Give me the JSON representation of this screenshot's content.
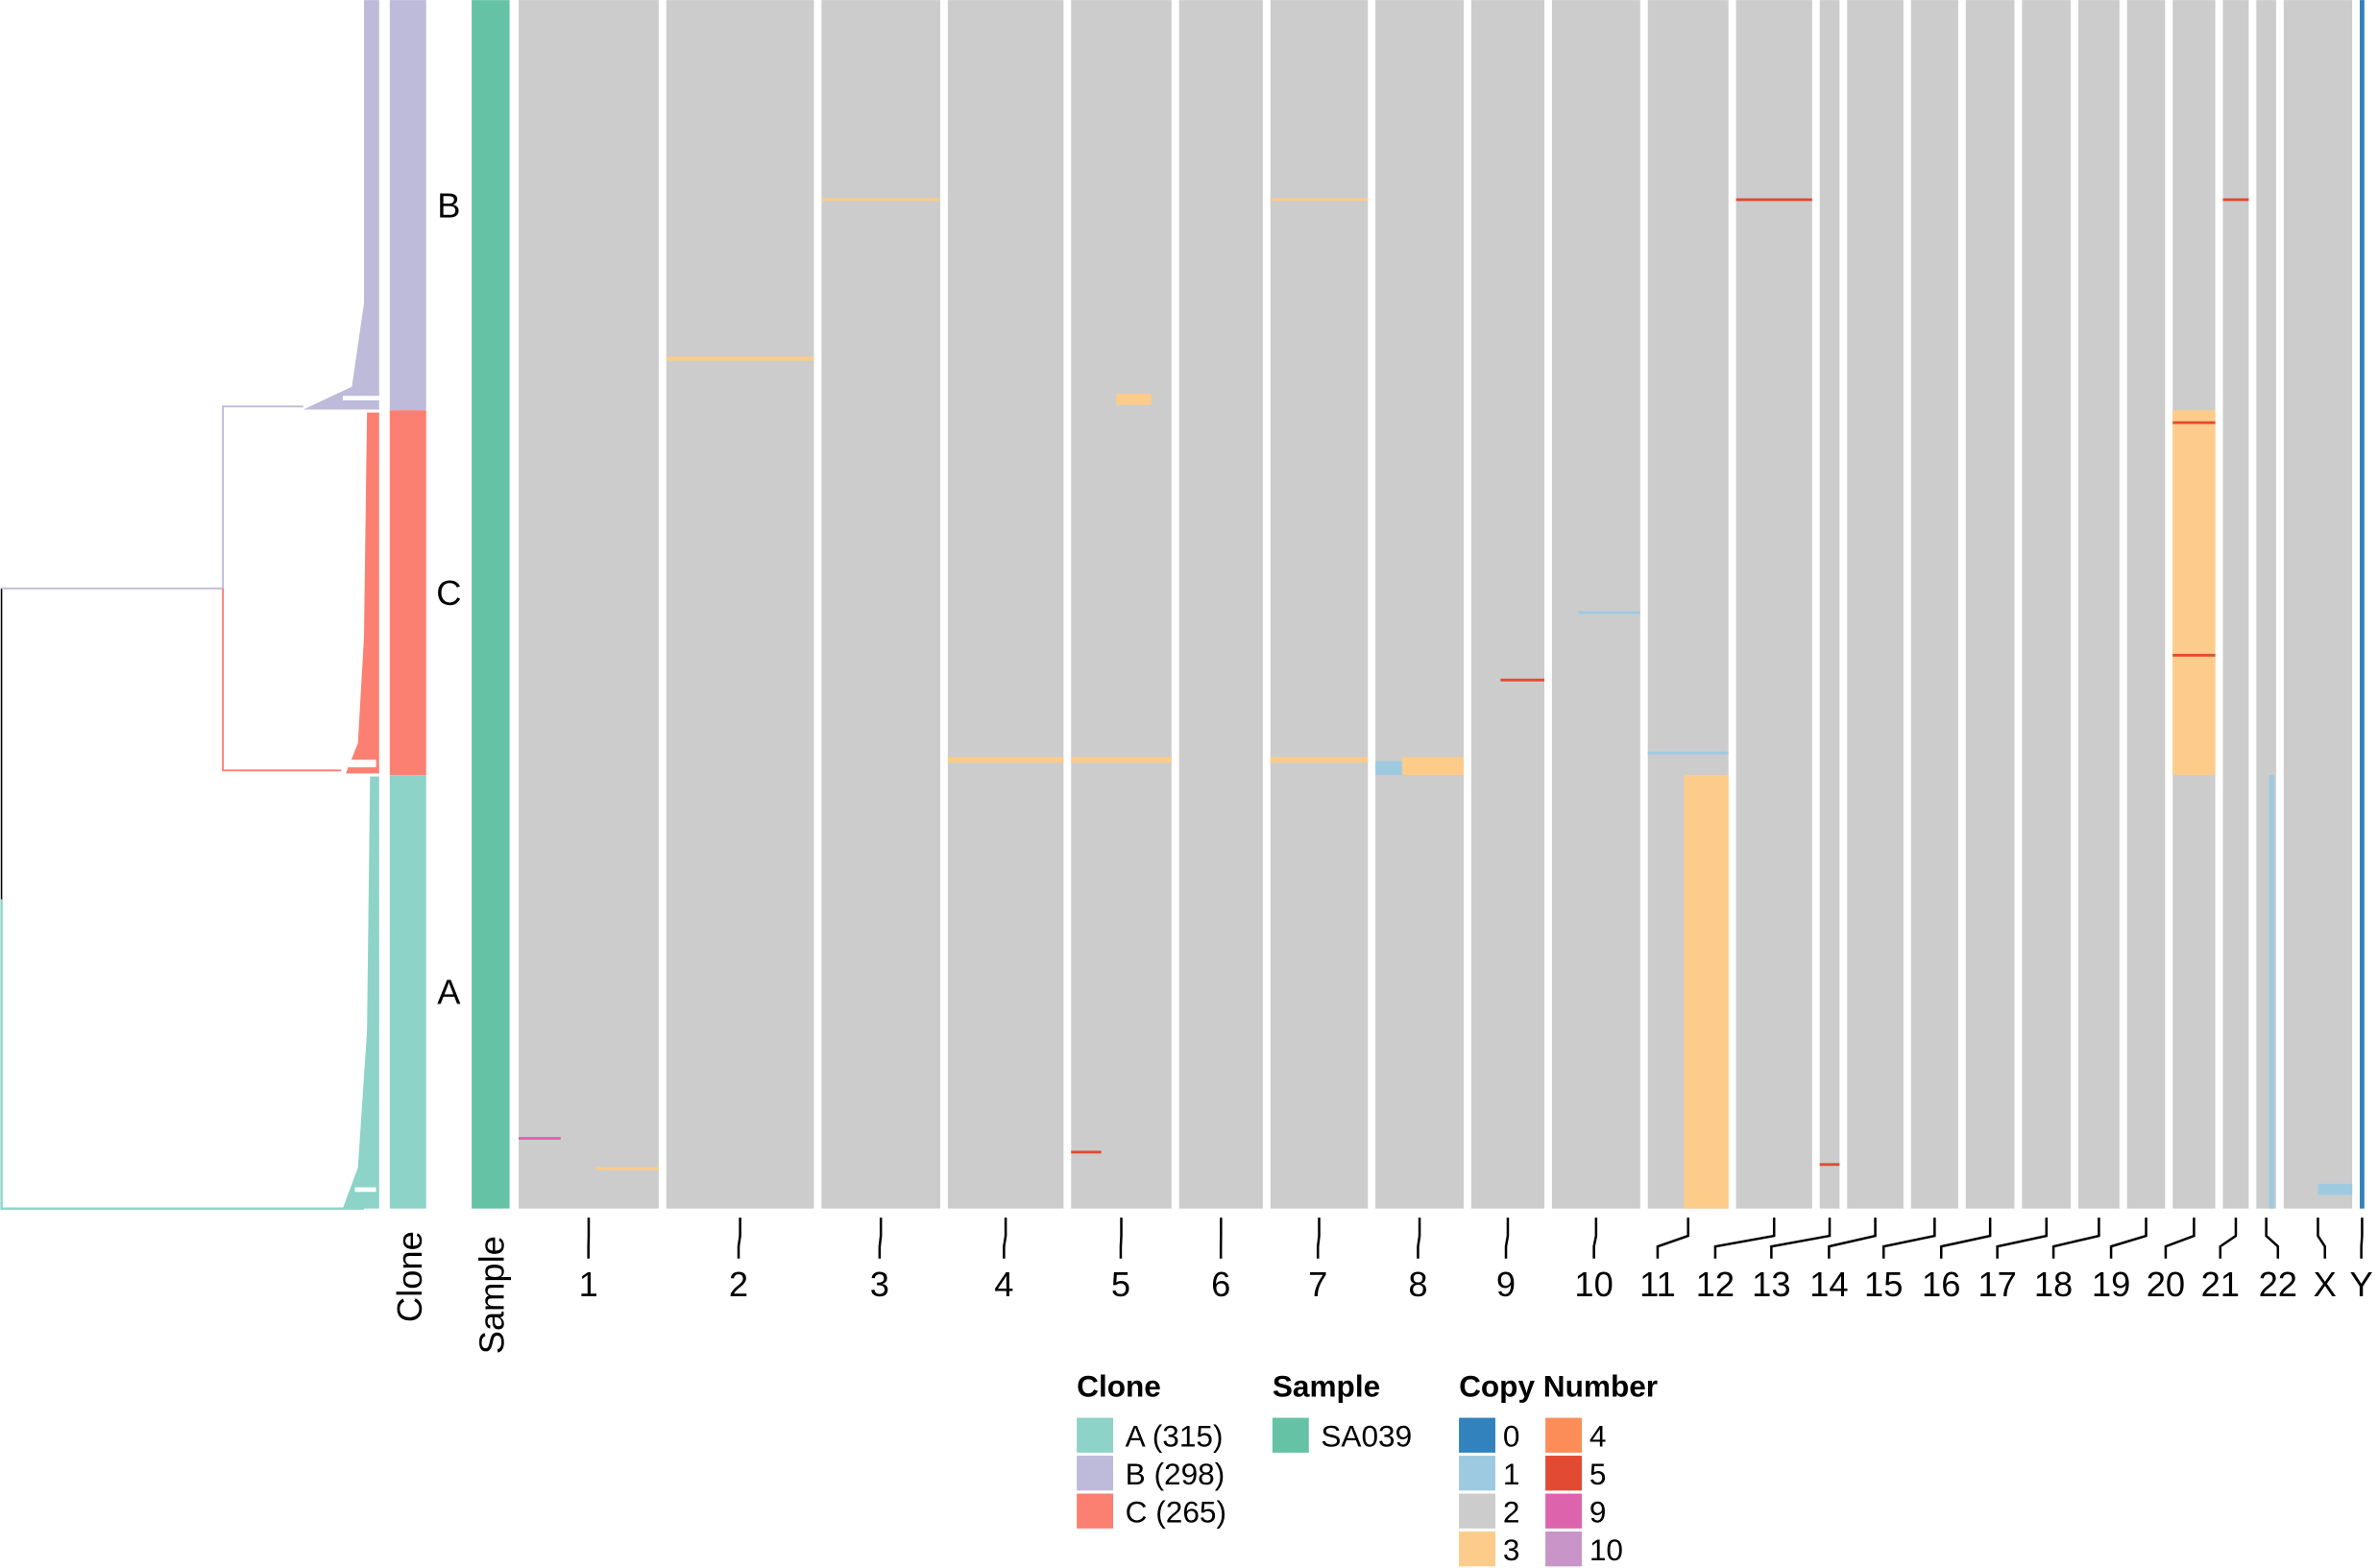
{
  "chart_data": {
    "type": "heatmap",
    "title": "",
    "row_order": [
      "B",
      "C",
      "A"
    ],
    "clones": [
      {
        "id": "A",
        "label": "A (315)",
        "cells": 315,
        "color": "#8DD3C7"
      },
      {
        "id": "B",
        "label": "B (298)",
        "cells": 298,
        "color": "#BEBADA"
      },
      {
        "id": "C",
        "label": "C (265)",
        "cells": 265,
        "color": "#FB8072"
      }
    ],
    "samples": [
      {
        "id": "SA039",
        "label": "SA039",
        "color": "#66C2A5"
      }
    ],
    "column_labels": {
      "clone": "Clone",
      "sample": "Sample"
    },
    "chromosomes": [
      {
        "name": "1",
        "size": 92
      },
      {
        "name": "2",
        "size": 97
      },
      {
        "name": "3",
        "size": 78
      },
      {
        "name": "4",
        "size": 76
      },
      {
        "name": "5",
        "size": 66
      },
      {
        "name": "6",
        "size": 55
      },
      {
        "name": "7",
        "size": 64
      },
      {
        "name": "8",
        "size": 58
      },
      {
        "name": "9",
        "size": 48
      },
      {
        "name": "10",
        "size": 58
      },
      {
        "name": "11",
        "size": 53
      },
      {
        "name": "12",
        "size": 50
      },
      {
        "name": "13",
        "size": 13
      },
      {
        "name": "14",
        "size": 37
      },
      {
        "name": "15",
        "size": 31
      },
      {
        "name": "16",
        "size": 32
      },
      {
        "name": "17",
        "size": 32
      },
      {
        "name": "18",
        "size": 27
      },
      {
        "name": "19",
        "size": 25
      },
      {
        "name": "20",
        "size": 28
      },
      {
        "name": "21",
        "size": 17
      },
      {
        "name": "22",
        "size": 13
      },
      {
        "name": "X",
        "size": 45
      },
      {
        "name": "Y",
        "size": 3
      }
    ],
    "baseline_copy_number": 2,
    "segments": [
      {
        "chr": "11",
        "from": 0.45,
        "to": 1.0,
        "cell_from": 563,
        "cell_to": 878,
        "cn": 3
      },
      {
        "chr": "20",
        "from": 0.0,
        "to": 1.0,
        "cell_from": 298,
        "cell_to": 563,
        "cn": 3
      },
      {
        "chr": "22",
        "from": 0.65,
        "to": 0.9,
        "cell_from": 563,
        "cell_to": 878,
        "cn": 1
      },
      {
        "chr": "Y",
        "from": 0.0,
        "to": 1.0,
        "cell_from": 0,
        "cell_to": 878,
        "cn": 0
      },
      {
        "chr": "8",
        "from": 0.3,
        "to": 1.0,
        "cell_from": 550,
        "cell_to": 563,
        "cn": 3
      },
      {
        "chr": "8",
        "from": 0.0,
        "to": 0.3,
        "cell_from": 553,
        "cell_to": 563,
        "cn": 1
      },
      {
        "chr": "5",
        "from": 0.45,
        "to": 0.8,
        "cell_from": 286,
        "cell_to": 294,
        "cn": 3
      },
      {
        "chr": "4",
        "from": 0.0,
        "to": 1.0,
        "cell_from": 550,
        "cell_to": 554,
        "cn": 3
      },
      {
        "chr": "5",
        "from": 0.0,
        "to": 1.0,
        "cell_from": 550,
        "cell_to": 554,
        "cn": 3
      },
      {
        "chr": "7",
        "from": 0.0,
        "to": 1.0,
        "cell_from": 550,
        "cell_to": 554,
        "cn": 3
      },
      {
        "chr": "3",
        "from": 0.0,
        "to": 1.0,
        "cell_from": 144,
        "cell_to": 146,
        "cn": 3
      },
      {
        "chr": "7",
        "from": 0.0,
        "to": 1.0,
        "cell_from": 144,
        "cell_to": 146,
        "cn": 3
      },
      {
        "chr": "12",
        "from": 0.0,
        "to": 1.0,
        "cell_from": 144,
        "cell_to": 146,
        "cn": 5
      },
      {
        "chr": "20",
        "from": 0.0,
        "to": 1.0,
        "cell_from": 306,
        "cell_to": 308,
        "cn": 5
      },
      {
        "chr": "20",
        "from": 0.0,
        "to": 1.0,
        "cell_from": 475,
        "cell_to": 477,
        "cn": 5
      },
      {
        "chr": "9",
        "from": 0.4,
        "to": 1.0,
        "cell_from": 493,
        "cell_to": 495,
        "cn": 5
      },
      {
        "chr": "2",
        "from": 0.0,
        "to": 1.0,
        "cell_from": 259,
        "cell_to": 262,
        "cn": 3
      },
      {
        "chr": "X",
        "from": 0.5,
        "to": 1.0,
        "cell_from": 860,
        "cell_to": 868,
        "cn": 1
      },
      {
        "chr": "11",
        "from": 0.0,
        "to": 1.0,
        "cell_from": 546,
        "cell_to": 548,
        "cn": 1
      },
      {
        "chr": "10",
        "from": 0.3,
        "to": 1.0,
        "cell_from": 444,
        "cell_to": 446,
        "cn": 1
      },
      {
        "chr": "1",
        "from": 0.0,
        "to": 0.3,
        "cell_from": 826,
        "cell_to": 828,
        "cn": 9
      },
      {
        "chr": "1",
        "from": 0.55,
        "to": 1.0,
        "cell_from": 848,
        "cell_to": 850,
        "cn": 3
      },
      {
        "chr": "5",
        "from": 0.0,
        "to": 0.3,
        "cell_from": 836,
        "cell_to": 838,
        "cn": 5
      },
      {
        "chr": "13",
        "from": 0.0,
        "to": 1.0,
        "cell_from": 845,
        "cell_to": 847,
        "cn": 5
      },
      {
        "chr": "21",
        "from": 0.0,
        "to": 1.0,
        "cell_from": 144,
        "cell_to": 146,
        "cn": 5
      }
    ],
    "legend": {
      "placement": "bottom",
      "clone_title": "Clone",
      "sample_title": "Sample",
      "copy_number_title": "Copy Number",
      "copy_number": [
        {
          "label": "0",
          "color": "#3182BD"
        },
        {
          "label": "1",
          "color": "#9ECAE1"
        },
        {
          "label": "2",
          "color": "#CCCCCC"
        },
        {
          "label": "3",
          "color": "#FDCC8A"
        },
        {
          "label": "4",
          "color": "#FC8D59"
        },
        {
          "label": "5",
          "color": "#E34A33"
        },
        {
          "label": "9",
          "color": "#DD64AC"
        },
        {
          "label": "10",
          "color": "#C994C7"
        }
      ]
    }
  }
}
